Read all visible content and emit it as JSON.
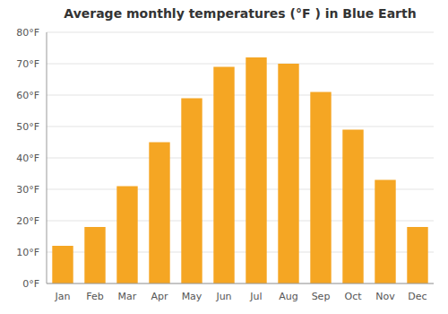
{
  "chart_data": {
    "type": "bar",
    "title": "Average monthly temperatures (°F ) in Blue Earth",
    "categories": [
      "Jan",
      "Feb",
      "Mar",
      "Apr",
      "May",
      "Jun",
      "Jul",
      "Aug",
      "Sep",
      "Oct",
      "Nov",
      "Dec"
    ],
    "values": [
      12,
      18,
      31,
      45,
      59,
      69,
      72,
      70,
      61,
      49,
      33,
      18
    ],
    "color": "#F5A623",
    "ylim": [
      0,
      80
    ],
    "yticks": [
      {
        "value": 0,
        "label": "0°F"
      },
      {
        "value": 10,
        "label": "10°F"
      },
      {
        "value": 20,
        "label": "20°F"
      },
      {
        "value": 30,
        "label": "30°F"
      },
      {
        "value": 40,
        "label": "40°F"
      },
      {
        "value": 50,
        "label": "50°F"
      },
      {
        "value": 60,
        "label": "60°F"
      },
      {
        "value": 70,
        "label": "70°F"
      },
      {
        "value": 80,
        "label": "80°F"
      }
    ],
    "grid": true
  }
}
